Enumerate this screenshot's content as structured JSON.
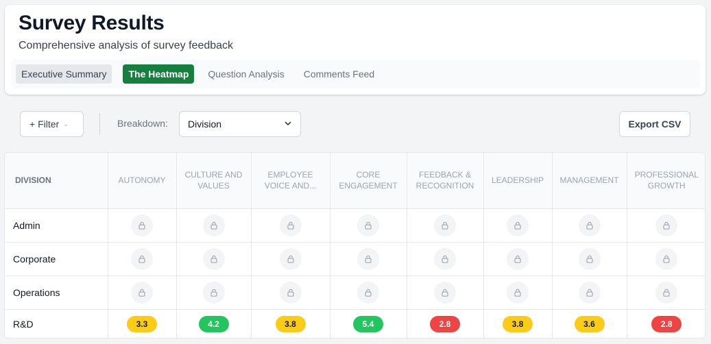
{
  "header": {
    "title": "Survey Results",
    "subtitle": "Comprehensive analysis of survey feedback",
    "tabs": [
      {
        "label": "Executive Summary"
      },
      {
        "label": "The Heatmap"
      },
      {
        "label": "Question Analysis"
      },
      {
        "label": "Comments Feed"
      }
    ]
  },
  "toolbar": {
    "filter_label": "+ Filter",
    "breakdown_label": "Breakdown:",
    "breakdown_value": "Division",
    "export_label": "Export CSV"
  },
  "table": {
    "columns": [
      "DIVISION",
      "AUTONOMY",
      "CULTURE AND VALUES",
      "EMPLOYEE VOICE AND...",
      "CORE ENGAGEMENT",
      "FEEDBACK & RECOGNITION",
      "LEADERSHIP",
      "MANAGEMENT",
      "PROFESSIONAL GROWTH"
    ],
    "rows": [
      {
        "label": "Admin",
        "locked": true,
        "scores": []
      },
      {
        "label": "Corporate",
        "locked": true,
        "scores": []
      },
      {
        "label": "Operations",
        "locked": true,
        "scores": []
      },
      {
        "label": "R&D",
        "locked": false,
        "scores": [
          {
            "value": "3.3",
            "level": "yellow"
          },
          {
            "value": "4.2",
            "level": "green"
          },
          {
            "value": "3.8",
            "level": "yellow"
          },
          {
            "value": "5.4",
            "level": "green"
          },
          {
            "value": "2.8",
            "level": "red"
          },
          {
            "value": "3.8",
            "level": "yellow"
          },
          {
            "value": "3.6",
            "level": "yellow"
          },
          {
            "value": "2.8",
            "level": "red"
          }
        ]
      }
    ]
  },
  "colors": {
    "active_tab": "#15803d",
    "score_yellow": "#facc15",
    "score_green": "#22c55e",
    "score_red": "#ef4444"
  },
  "icons": {
    "locked_cell": "lock-icon",
    "select_arrow": "chevron-down-icon"
  }
}
